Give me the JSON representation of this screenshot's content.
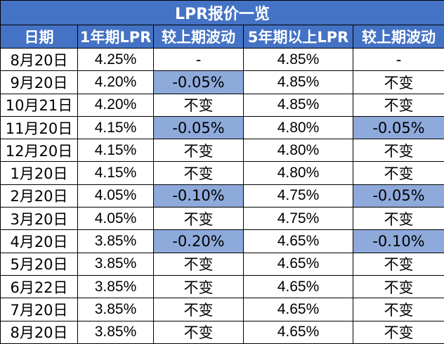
{
  "title": "LPR报价一览",
  "headers": [
    "日期",
    "1年期LPR",
    "较上期波动",
    "5年期以上LPR",
    "较上期波动"
  ],
  "rows": [
    {
      "date": "8月20日",
      "lpr1y": "4.25%",
      "chg1y": "-",
      "lpr5y": "4.85%",
      "chg5y": "-",
      "hl1": false,
      "hl5": false
    },
    {
      "date": "9月20日",
      "lpr1y": "4.20%",
      "chg1y": "-0.05%",
      "lpr5y": "4.85%",
      "chg5y": "不变",
      "hl1": true,
      "hl5": false
    },
    {
      "date": "10月21日",
      "lpr1y": "4.20%",
      "chg1y": "不变",
      "lpr5y": "4.85%",
      "chg5y": "不变",
      "hl1": false,
      "hl5": false
    },
    {
      "date": "11月20日",
      "lpr1y": "4.15%",
      "chg1y": "-0.05%",
      "lpr5y": "4.80%",
      "chg5y": "-0.05%",
      "hl1": true,
      "hl5": true
    },
    {
      "date": "12月20日",
      "lpr1y": "4.15%",
      "chg1y": "不变",
      "lpr5y": "4.80%",
      "chg5y": "不变",
      "hl1": false,
      "hl5": false
    },
    {
      "date": "1月20日",
      "lpr1y": "4.15%",
      "chg1y": "不变",
      "lpr5y": "4.80%",
      "chg5y": "不变",
      "hl1": false,
      "hl5": false
    },
    {
      "date": "2月20日",
      "lpr1y": "4.05%",
      "chg1y": "-0.10%",
      "lpr5y": "4.75%",
      "chg5y": "-0.05%",
      "hl1": true,
      "hl5": true
    },
    {
      "date": "3月20日",
      "lpr1y": "4.05%",
      "chg1y": "不变",
      "lpr5y": "4.75%",
      "chg5y": "不变",
      "hl1": false,
      "hl5": false
    },
    {
      "date": "4月20日",
      "lpr1y": "3.85%",
      "chg1y": "-0.20%",
      "lpr5y": "4.65%",
      "chg5y": "-0.10%",
      "hl1": true,
      "hl5": true
    },
    {
      "date": "5月20日",
      "lpr1y": "3.85%",
      "chg1y": "不变",
      "lpr5y": "4.65%",
      "chg5y": "不变",
      "hl1": false,
      "hl5": false
    },
    {
      "date": "6月22日",
      "lpr1y": "3.85%",
      "chg1y": "不变",
      "lpr5y": "4.65%",
      "chg5y": "不变",
      "hl1": false,
      "hl5": false
    },
    {
      "date": "7月20日",
      "lpr1y": "3.85%",
      "chg1y": "不变",
      "lpr5y": "4.65%",
      "chg5y": "不变",
      "hl1": false,
      "hl5": false
    },
    {
      "date": "8月20日",
      "lpr1y": "3.85%",
      "chg1y": "不变",
      "lpr5y": "4.65%",
      "chg5y": "不变",
      "hl1": false,
      "hl5": false
    }
  ],
  "colors": {
    "header_bg": "#4472c4",
    "highlight_bg": "#8eaadb"
  }
}
